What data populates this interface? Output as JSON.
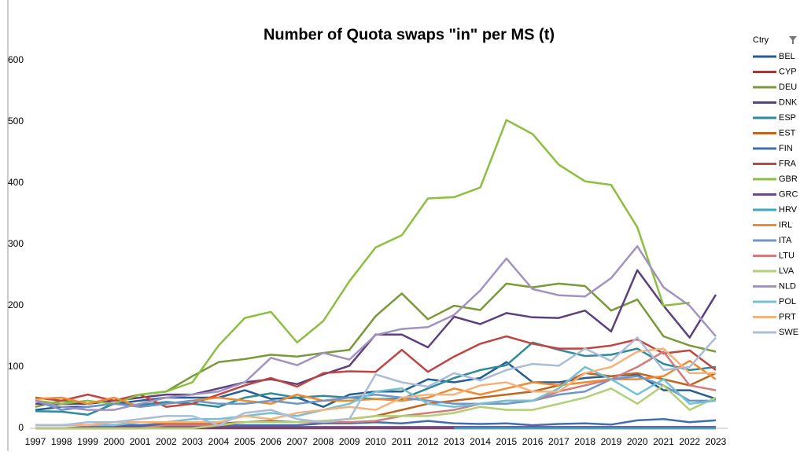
{
  "chart_data": {
    "type": "line",
    "title": "Number of Quota swaps \"in\" per MS (t)",
    "legend_title": "Ctry",
    "categories": [
      "1997",
      "1998",
      "1999",
      "2000",
      "2001",
      "2002",
      "2003",
      "2004",
      "2005",
      "2006",
      "2007",
      "2008",
      "2009",
      "2010",
      "2011",
      "2012",
      "2013",
      "2014",
      "2015",
      "2016",
      "2017",
      "2018",
      "2019",
      "2020",
      "2021",
      "2022",
      "2023"
    ],
    "ylim": [
      0,
      600
    ],
    "yticks": [
      0,
      100,
      200,
      300,
      400,
      500,
      600
    ],
    "grid": false,
    "legend": "right",
    "series": [
      {
        "name": "BEL",
        "color": "#255e91",
        "values": [
          30,
          35,
          35,
          40,
          45,
          50,
          50,
          50,
          62,
          48,
          50,
          35,
          55,
          60,
          60,
          80,
          75,
          82,
          108,
          75,
          75,
          82,
          85,
          88,
          62,
          62,
          48
        ]
      },
      {
        "name": "CYP",
        "color": "#9e3a38",
        "values": [
          0,
          0,
          0,
          0,
          0,
          0,
          0,
          0,
          0,
          0,
          0,
          0,
          0,
          0,
          0,
          0,
          0,
          0,
          0,
          0,
          0,
          0,
          0,
          0,
          0,
          0,
          0
        ]
      },
      {
        "name": "DEU",
        "color": "#7a9a3a",
        "values": [
          35,
          45,
          40,
          45,
          55,
          60,
          85,
          108,
          113,
          120,
          117,
          123,
          128,
          183,
          220,
          178,
          200,
          193,
          236,
          230,
          236,
          232,
          192,
          210,
          150,
          135,
          125
        ]
      },
      {
        "name": "DNK",
        "color": "#5c3f7d",
        "values": [
          40,
          40,
          40,
          45,
          50,
          55,
          55,
          65,
          75,
          80,
          72,
          88,
          102,
          153,
          153,
          132,
          182,
          170,
          188,
          181,
          180,
          192,
          158,
          258,
          200,
          148,
          218
        ]
      },
      {
        "name": "ESP",
        "color": "#2f8a9a",
        "values": [
          28,
          27,
          22,
          40,
          38,
          43,
          40,
          35,
          50,
          57,
          50,
          53,
          50,
          48,
          48,
          65,
          82,
          95,
          103,
          140,
          128,
          118,
          120,
          130,
          105,
          95,
          100
        ]
      },
      {
        "name": "EST",
        "color": "#c0641f",
        "values": [
          5,
          5,
          5,
          5,
          5,
          8,
          8,
          8,
          10,
          12,
          10,
          12,
          15,
          20,
          30,
          40,
          45,
          50,
          55,
          60,
          70,
          90,
          85,
          90,
          80,
          70,
          90
        ]
      },
      {
        "name": "FIN",
        "color": "#3f6fb0",
        "values": [
          5,
          5,
          5,
          5,
          5,
          5,
          5,
          5,
          5,
          5,
          5,
          8,
          8,
          10,
          8,
          12,
          8,
          7,
          8,
          5,
          7,
          8,
          6,
          13,
          15,
          10,
          13
        ]
      },
      {
        "name": "FRA",
        "color": "#c0443f",
        "values": [
          50,
          45,
          55,
          45,
          55,
          35,
          40,
          55,
          70,
          82,
          68,
          90,
          93,
          92,
          128,
          92,
          117,
          138,
          150,
          138,
          130,
          130,
          135,
          145,
          122,
          127,
          95
        ]
      },
      {
        "name": "GBR",
        "color": "#8cbf40",
        "values": [
          45,
          40,
          45,
          40,
          55,
          60,
          75,
          135,
          180,
          190,
          140,
          175,
          240,
          295,
          315,
          375,
          377,
          393,
          503,
          480,
          430,
          403,
          397,
          328,
          200,
          205,
          null
        ]
      },
      {
        "name": "GRC",
        "color": "#6a4a8d",
        "values": [
          0,
          0,
          2,
          2,
          2,
          2,
          2,
          2,
          2,
          2,
          2,
          2,
          2,
          2,
          2,
          2,
          2,
          2,
          2,
          2,
          2,
          2,
          2,
          2,
          2,
          2,
          2
        ]
      },
      {
        "name": "HRV",
        "color": "#39a8c0",
        "values": [
          null,
          null,
          null,
          null,
          null,
          null,
          null,
          null,
          null,
          null,
          null,
          null,
          null,
          null,
          null,
          null,
          0,
          0,
          0,
          0,
          0,
          0,
          0,
          0,
          0,
          0,
          0
        ]
      },
      {
        "name": "IRL",
        "color": "#f08a30",
        "values": [
          48,
          50,
          40,
          50,
          35,
          40,
          45,
          50,
          45,
          40,
          55,
          45,
          45,
          48,
          45,
          50,
          65,
          55,
          65,
          75,
          70,
          75,
          80,
          80,
          85,
          110,
          80
        ]
      },
      {
        "name": "ITA",
        "color": "#7096c9",
        "values": [
          45,
          30,
          35,
          40,
          35,
          40,
          45,
          40,
          40,
          45,
          40,
          45,
          50,
          55,
          50,
          45,
          40,
          40,
          40,
          45,
          55,
          60,
          80,
          85,
          70,
          45,
          45
        ]
      },
      {
        "name": "LTU",
        "color": "#d47c7a",
        "values": [
          0,
          0,
          0,
          0,
          0,
          5,
          5,
          5,
          10,
          10,
          10,
          10,
          10,
          12,
          20,
          25,
          30,
          40,
          45,
          45,
          60,
          70,
          80,
          100,
          125,
          70,
          62
        ]
      },
      {
        "name": "LVA",
        "color": "#b2cf78",
        "values": [
          0,
          0,
          0,
          0,
          0,
          0,
          0,
          5,
          10,
          10,
          10,
          12,
          15,
          20,
          20,
          20,
          25,
          35,
          30,
          30,
          40,
          50,
          65,
          40,
          70,
          30,
          50
        ]
      },
      {
        "name": "NLD",
        "color": "#a192c0",
        "values": [
          45,
          35,
          30,
          30,
          40,
          50,
          55,
          60,
          75,
          115,
          103,
          123,
          112,
          152,
          162,
          165,
          185,
          225,
          277,
          227,
          217,
          215,
          245,
          297,
          230,
          200,
          150
        ]
      },
      {
        "name": "POL",
        "color": "#74c0d3",
        "values": [
          5,
          5,
          5,
          5,
          10,
          10,
          15,
          15,
          20,
          25,
          20,
          30,
          40,
          60,
          65,
          40,
          35,
          40,
          45,
          45,
          65,
          100,
          80,
          55,
          80,
          40,
          45
        ]
      },
      {
        "name": "PRT",
        "color": "#f6b27d",
        "values": [
          5,
          5,
          5,
          10,
          10,
          10,
          10,
          10,
          20,
          15,
          25,
          30,
          35,
          30,
          50,
          55,
          55,
          70,
          75,
          60,
          60,
          90,
          100,
          125,
          130,
          90,
          90
        ]
      },
      {
        "name": "SWE",
        "color": "#a9bcd8",
        "values": [
          5,
          5,
          10,
          10,
          15,
          20,
          20,
          5,
          25,
          30,
          15,
          10,
          15,
          88,
          75,
          68,
          90,
          78,
          95,
          105,
          102,
          130,
          110,
          148,
          95,
          100,
          148
        ]
      }
    ]
  }
}
